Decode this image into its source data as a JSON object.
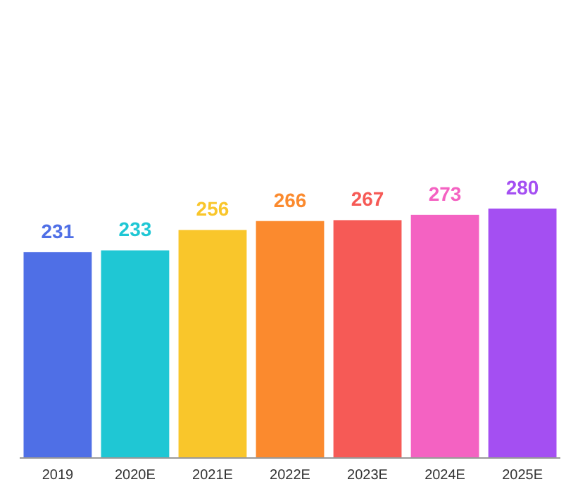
{
  "chart_data": {
    "type": "bar",
    "categories": [
      "2019",
      "2020E",
      "2021E",
      "2022E",
      "2023E",
      "2024E",
      "2025E"
    ],
    "values": [
      231,
      233,
      256,
      266,
      267,
      273,
      280
    ],
    "colors": [
      "#4f6fe6",
      "#1fc7d4",
      "#f9c62b",
      "#fb8a2e",
      "#f65a56",
      "#f462c2",
      "#a44ff2"
    ],
    "data_labels": true
  }
}
